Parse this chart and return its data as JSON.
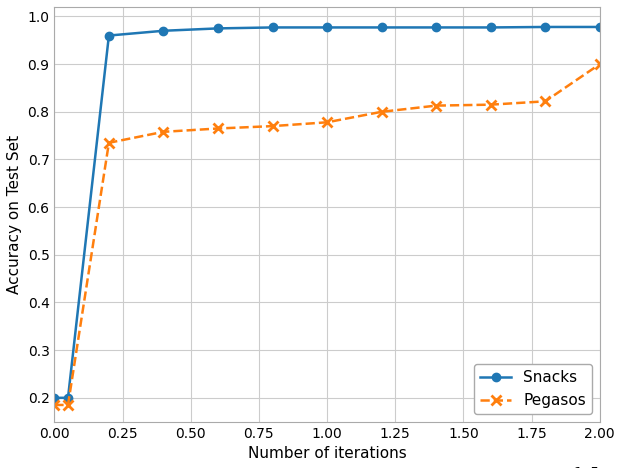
{
  "snacks_x": [
    0,
    5000,
    20000,
    40000,
    60000,
    80000,
    100000,
    120000,
    140000,
    160000,
    180000,
    200000
  ],
  "snacks_y": [
    0.2,
    0.2,
    0.96,
    0.97,
    0.975,
    0.977,
    0.977,
    0.977,
    0.977,
    0.977,
    0.978,
    0.978
  ],
  "pegasos_x": [
    0,
    5000,
    20000,
    40000,
    60000,
    80000,
    100000,
    120000,
    140000,
    160000,
    180000,
    200000
  ],
  "pegasos_y": [
    0.185,
    0.185,
    0.735,
    0.758,
    0.765,
    0.77,
    0.778,
    0.8,
    0.813,
    0.815,
    0.822,
    0.9
  ],
  "snacks_color": "#1f77b4",
  "pegasos_color": "#ff7f0e",
  "xlabel": "Number of iterations",
  "ylabel": "Accuracy on Test Set",
  "xlim": [
    0,
    200000
  ],
  "ylim": [
    0.15,
    1.02
  ],
  "background_color": "#ffffff",
  "grid_color": "#cccccc",
  "xticks": [
    0,
    25000,
    50000,
    75000,
    100000,
    125000,
    150000,
    175000,
    200000
  ],
  "yticks": [
    0.2,
    0.3,
    0.4,
    0.5,
    0.6,
    0.7,
    0.8,
    0.9,
    1.0
  ]
}
